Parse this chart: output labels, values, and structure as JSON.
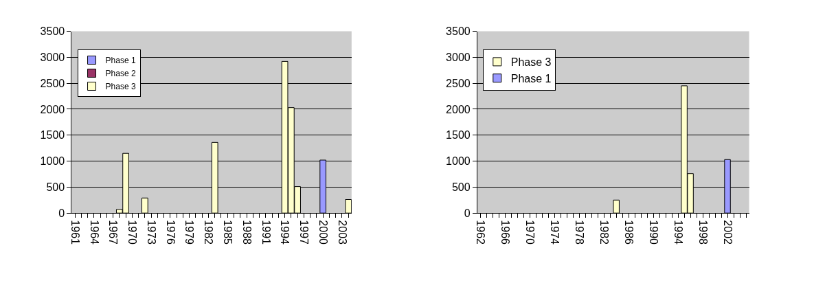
{
  "chart_data": [
    {
      "type": "bar",
      "stacked": true,
      "legend": "top left",
      "grid": "y",
      "ylim": [
        0,
        3500
      ],
      "yticks": [
        0,
        500,
        1000,
        1500,
        2000,
        2500,
        3000,
        3500
      ],
      "categories": [
        "1961",
        null,
        null,
        "1964",
        null,
        null,
        "1967",
        null,
        null,
        "1970",
        null,
        null,
        "1973",
        null,
        null,
        "1976",
        null,
        null,
        "1979",
        null,
        null,
        "1982",
        null,
        null,
        "1985",
        null,
        null,
        "1988",
        null,
        null,
        "1991",
        null,
        null,
        "1994",
        null,
        null,
        "1997",
        null,
        null,
        "2000",
        null,
        null,
        "2003",
        null
      ],
      "series": [
        {
          "name": "Phase 1",
          "color": "#9999ff",
          "values": [
            null,
            null,
            null,
            null,
            null,
            null,
            null,
            null,
            null,
            null,
            null,
            null,
            null,
            null,
            null,
            null,
            null,
            null,
            null,
            null,
            null,
            null,
            null,
            null,
            null,
            null,
            null,
            null,
            null,
            null,
            null,
            null,
            null,
            null,
            null,
            null,
            null,
            null,
            null,
            1020,
            null,
            null,
            null,
            null
          ]
        },
        {
          "name": "Phase 2",
          "color": "#993366",
          "values": [
            null,
            null,
            null,
            null,
            null,
            null,
            null,
            null,
            null,
            null,
            null,
            null,
            null,
            null,
            null,
            null,
            null,
            null,
            null,
            null,
            null,
            null,
            null,
            null,
            null,
            null,
            null,
            null,
            null,
            null,
            null,
            null,
            null,
            null,
            null,
            null,
            null,
            null,
            null,
            null,
            null,
            null,
            null,
            null
          ]
        },
        {
          "name": "Phase 3",
          "color": "#ffffcc",
          "values": [
            null,
            null,
            null,
            null,
            null,
            null,
            null,
            70,
            1150,
            null,
            null,
            290,
            null,
            null,
            null,
            null,
            null,
            null,
            null,
            null,
            null,
            null,
            1360,
            null,
            null,
            null,
            null,
            null,
            null,
            null,
            null,
            null,
            null,
            2920,
            2030,
            510,
            null,
            null,
            null,
            null,
            null,
            null,
            null,
            260
          ]
        }
      ]
    },
    {
      "type": "bar",
      "stacked": true,
      "legend": "top left",
      "grid": "y",
      "ylim": [
        0,
        3500
      ],
      "yticks": [
        0,
        500,
        1000,
        1500,
        2000,
        2500,
        3000,
        3500
      ],
      "categories": [
        "1962",
        null,
        null,
        null,
        "1966",
        null,
        null,
        null,
        "1970",
        null,
        null,
        null,
        "1974",
        null,
        null,
        null,
        "1978",
        null,
        null,
        null,
        "1982",
        null,
        null,
        null,
        "1986",
        null,
        null,
        null,
        "1990",
        null,
        null,
        null,
        "1994",
        null,
        null,
        null,
        "1998",
        null,
        null,
        null,
        "2002",
        null,
        null,
        null
      ],
      "series": [
        {
          "name": "Phase 3",
          "color": "#ffffcc",
          "values": [
            null,
            null,
            null,
            null,
            null,
            null,
            null,
            null,
            null,
            null,
            null,
            null,
            null,
            null,
            null,
            null,
            null,
            null,
            null,
            null,
            null,
            null,
            250,
            null,
            null,
            null,
            null,
            null,
            null,
            null,
            null,
            null,
            null,
            2450,
            760,
            null,
            null,
            null,
            null,
            null,
            null,
            null,
            null,
            null
          ]
        },
        {
          "name": "Phase 1",
          "color": "#9999ff",
          "values": [
            null,
            null,
            null,
            null,
            null,
            null,
            null,
            null,
            null,
            null,
            null,
            null,
            null,
            null,
            null,
            null,
            null,
            null,
            null,
            null,
            null,
            null,
            null,
            null,
            null,
            null,
            null,
            null,
            null,
            null,
            null,
            null,
            null,
            null,
            null,
            null,
            null,
            null,
            null,
            null,
            1030,
            null,
            null,
            null
          ]
        }
      ]
    }
  ]
}
